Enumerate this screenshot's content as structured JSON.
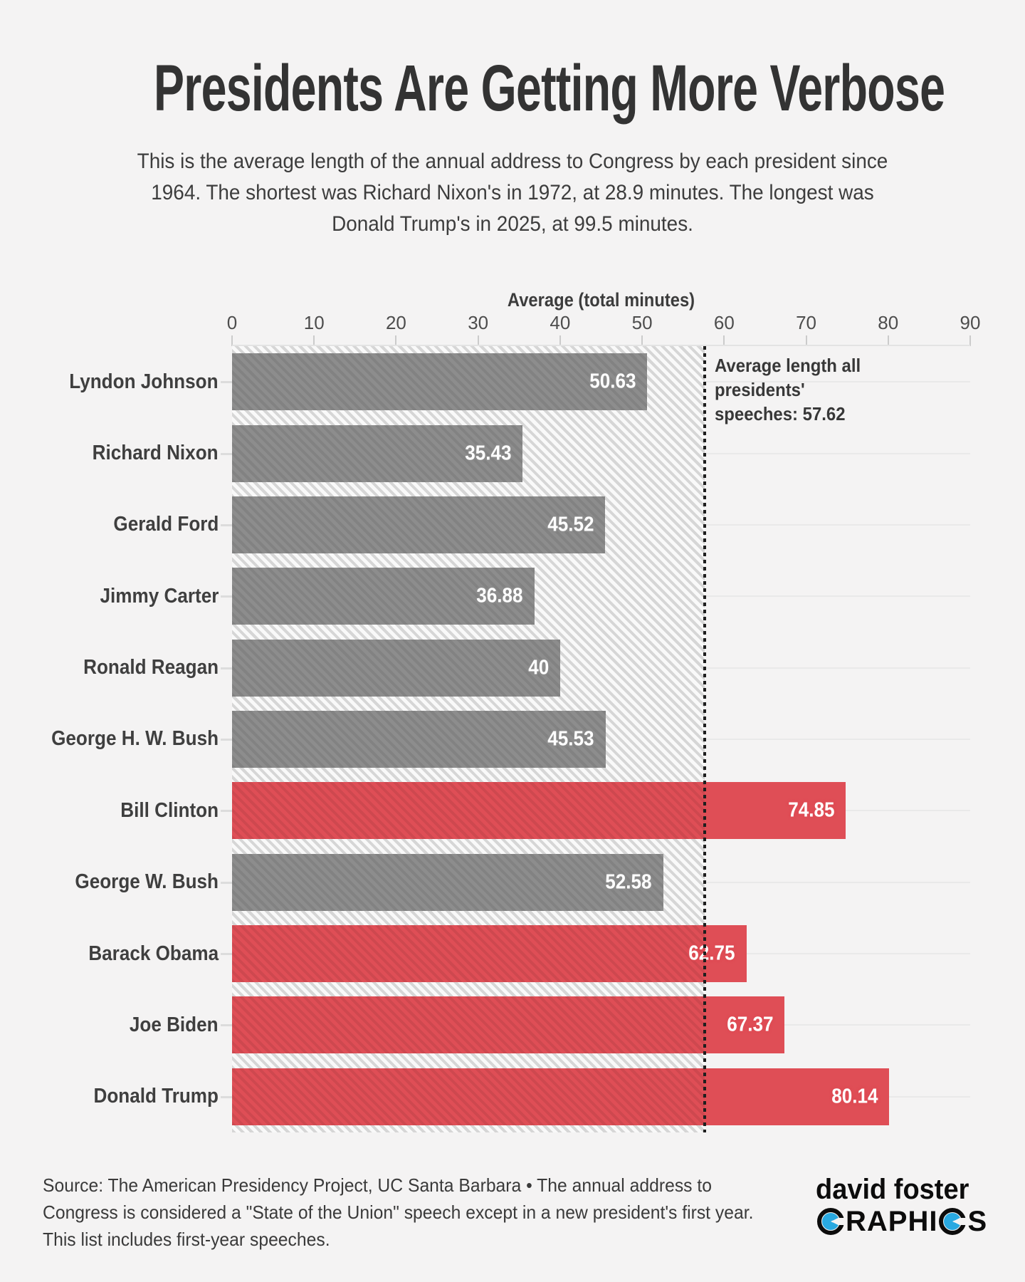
{
  "page": {
    "background": "#f4f3f3"
  },
  "header": {
    "title": "Presidents Are Getting More Verbose",
    "subtitle": "This is the average length of the annual address to Congress by each president since 1964. The shortest was Richard Nixon's in 1972, at 28.9 minutes. The longest was Donald Trump's in 2025, at 99.5 minutes."
  },
  "chart_data": {
    "type": "bar",
    "orientation": "horizontal",
    "axis_title": "Average (total minutes)",
    "xlim": [
      0,
      90
    ],
    "x_ticks": [
      0,
      10,
      20,
      30,
      40,
      50,
      60,
      70,
      80,
      90
    ],
    "grid": "horizontal row lines, light gray",
    "categories": [
      "Lyndon Johnson",
      "Richard Nixon",
      "Gerald Ford",
      "Jimmy Carter",
      "Ronald Reagan",
      "George H. W. Bush",
      "Bill Clinton",
      "George W. Bush",
      "Barack Obama",
      "Joe Biden",
      "Donald Trump"
    ],
    "values": [
      50.63,
      35.43,
      45.52,
      36.88,
      40,
      45.53,
      74.85,
      52.58,
      62.75,
      67.37,
      80.14
    ],
    "value_labels": [
      "50.63",
      "35.43",
      "45.52",
      "36.88",
      "40",
      "45.53",
      "74.85",
      "52.58",
      "62.75",
      "67.37",
      "80.14"
    ],
    "average": 57.62,
    "annotation": "Average length all presidents' speeches: 57.62",
    "colors": {
      "below_average_bar": "#8d8d8d",
      "above_average_bar": "#df4e56",
      "average_line": "#1f1f1f",
      "value_text": "#ffffff"
    },
    "legend": "none; bars left of dotted average line carry diagonal hatching"
  },
  "footer": {
    "source": "Source: The American Presidency Project, UC Santa Barbara • The annual address to Congress is considered a \"State of the Union\" speech except in a new president's first year. This list includes first-year speeches.",
    "logo": {
      "top": "david foster",
      "bottom_segments": [
        {
          "type": "circle-letter",
          "char": "G"
        },
        {
          "type": "text",
          "text": "RAPHI"
        },
        {
          "type": "circle-letter",
          "char": "C"
        },
        {
          "type": "text",
          "text": "S"
        }
      ],
      "accent_blue": "#29a9e1"
    }
  }
}
